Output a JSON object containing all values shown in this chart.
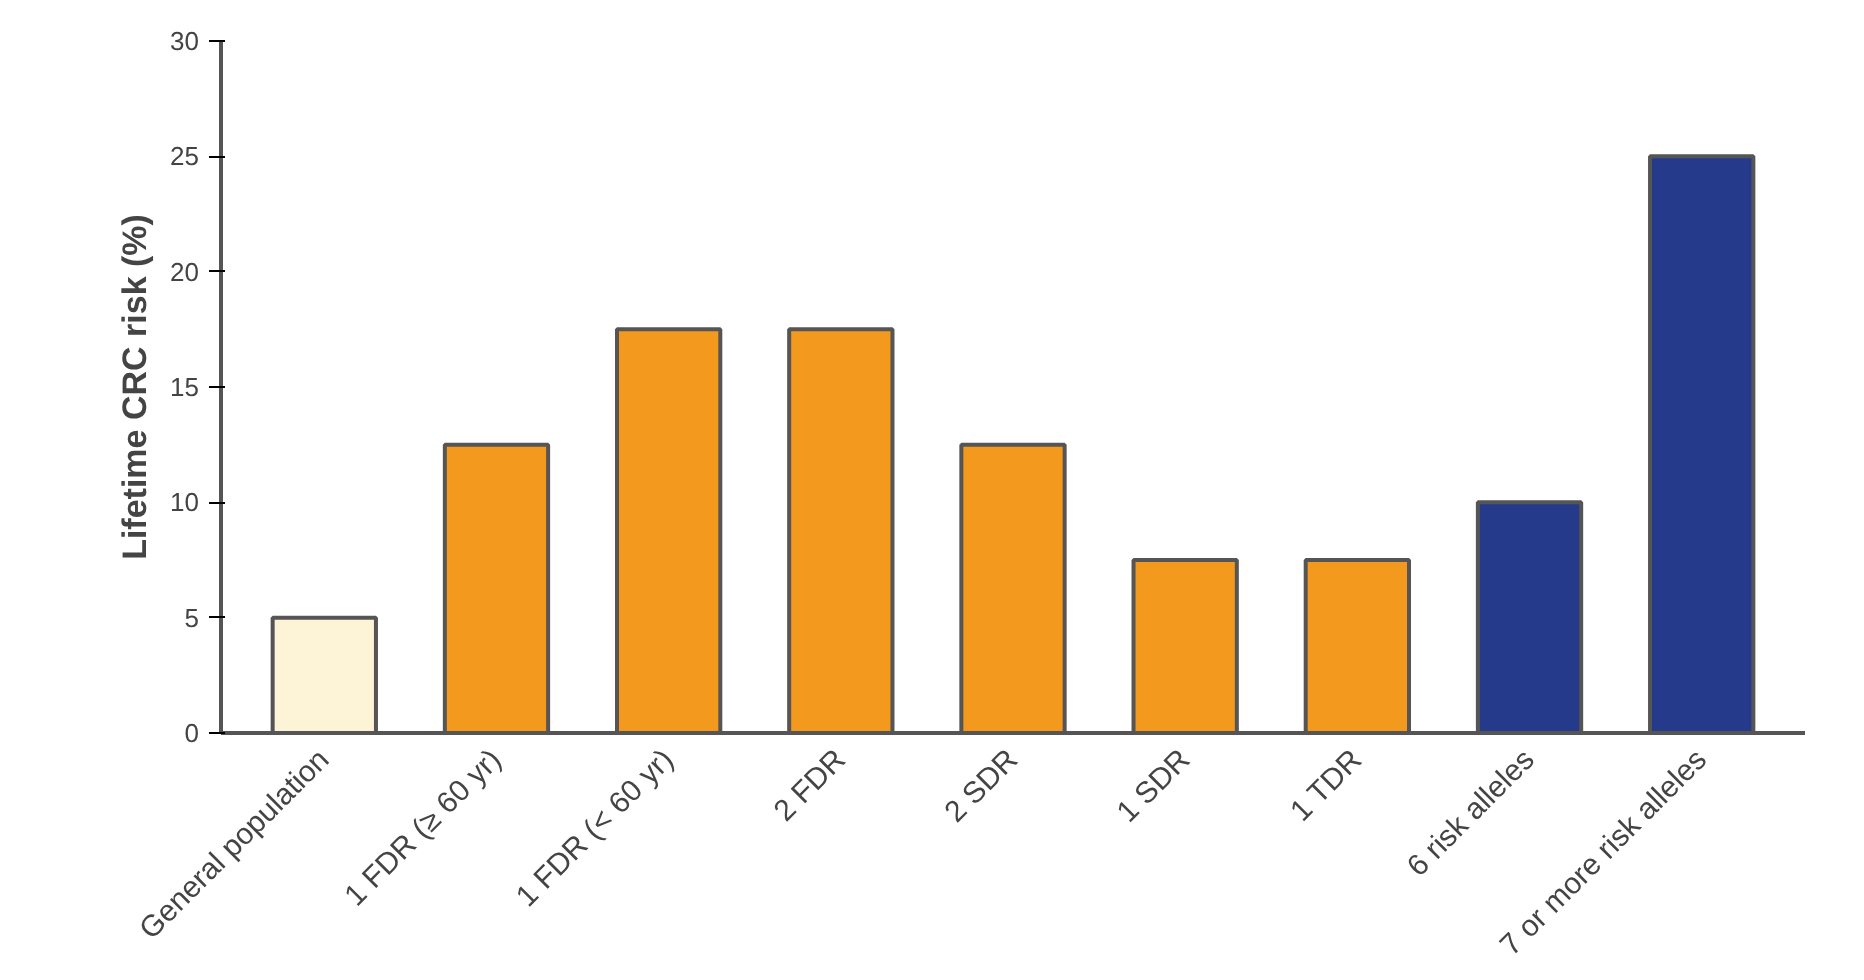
{
  "chart_data": {
    "type": "bar",
    "ylabel": "Lifetime CRC risk (%)",
    "categories": [
      "General population",
      "1 FDR (≥ 60 yr)",
      "1 FDR (< 60 yr)",
      "2 FDR",
      "2 SDR",
      "1 SDR",
      "1 TDR",
      "6 risk alleles",
      "7 or more risk alleles"
    ],
    "values": [
      5,
      12.5,
      17.5,
      17.5,
      12.5,
      7.5,
      7.5,
      10,
      25
    ],
    "colors": [
      "#fdf3d6",
      "#f39a1e",
      "#f39a1e",
      "#f39a1e",
      "#f39a1e",
      "#f39a1e",
      "#f39a1e",
      "#263a8c",
      "#263a8c"
    ],
    "ylim": [
      0,
      30
    ],
    "yticks": [
      0,
      5,
      10,
      15,
      20,
      25,
      30
    ],
    "grid": false
  }
}
